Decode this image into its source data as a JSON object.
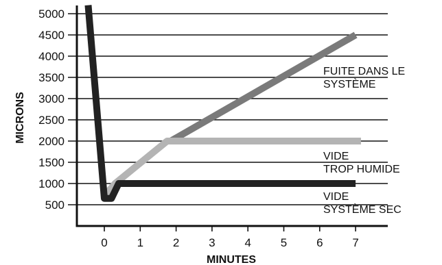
{
  "chart_data": {
    "type": "line",
    "title": "",
    "xlabel": "MINUTES",
    "ylabel": "MICRONS",
    "xlim": [
      -0.7,
      7.5
    ],
    "ylim": [
      0,
      5100
    ],
    "x_ticks": [
      "0",
      "1",
      "2",
      "3",
      "4",
      "5",
      "6",
      "7"
    ],
    "y_ticks": [
      "500",
      "1000",
      "1500",
      "2000",
      "2500",
      "3000",
      "3500",
      "4000",
      "4500",
      "5000"
    ],
    "grid": "horizontal",
    "series": [
      {
        "label_lines": [
          "FUITE DANS LE",
          "SYSTÈME"
        ],
        "color": "#7a7a7a",
        "points": [
          [
            1.85,
            2000
          ],
          [
            7.0,
            4500
          ]
        ]
      },
      {
        "label_lines": [
          "VIDE",
          "TROP HUMIDE"
        ],
        "color": "#b4b4b4",
        "points": [
          [
            0.05,
            750
          ],
          [
            0.3,
            1000
          ],
          [
            1.75,
            2000
          ],
          [
            7.15,
            2000
          ]
        ]
      },
      {
        "label_lines": [
          "VIDE",
          "SYSTÈME SEC"
        ],
        "color": "#222222",
        "points": [
          [
            -0.45,
            5200
          ],
          [
            0.0,
            650
          ],
          [
            0.2,
            650
          ],
          [
            0.4,
            1000
          ],
          [
            7.0,
            1000
          ]
        ]
      }
    ]
  }
}
